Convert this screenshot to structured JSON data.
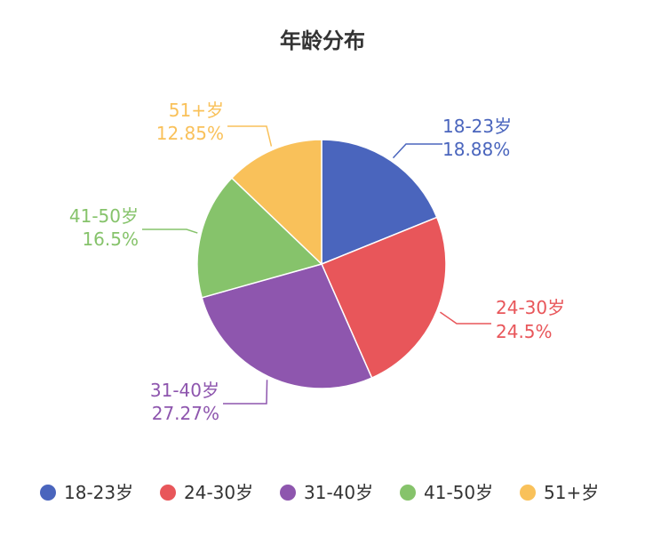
{
  "chart_data": {
    "type": "pie",
    "title": "年龄分布",
    "categories": [
      "18-23岁",
      "24-30岁",
      "31-40岁",
      "41-50岁",
      "51+岁"
    ],
    "values": [
      18.88,
      24.5,
      27.27,
      16.5,
      12.85
    ],
    "value_labels": [
      "18.88%",
      "24.5%",
      "27.27%",
      "16.5%",
      "12.85%"
    ],
    "colors": [
      "#4a65bd",
      "#e8565a",
      "#8e56ae",
      "#86c36b",
      "#f9c15a"
    ],
    "legend_position": "bottom"
  }
}
